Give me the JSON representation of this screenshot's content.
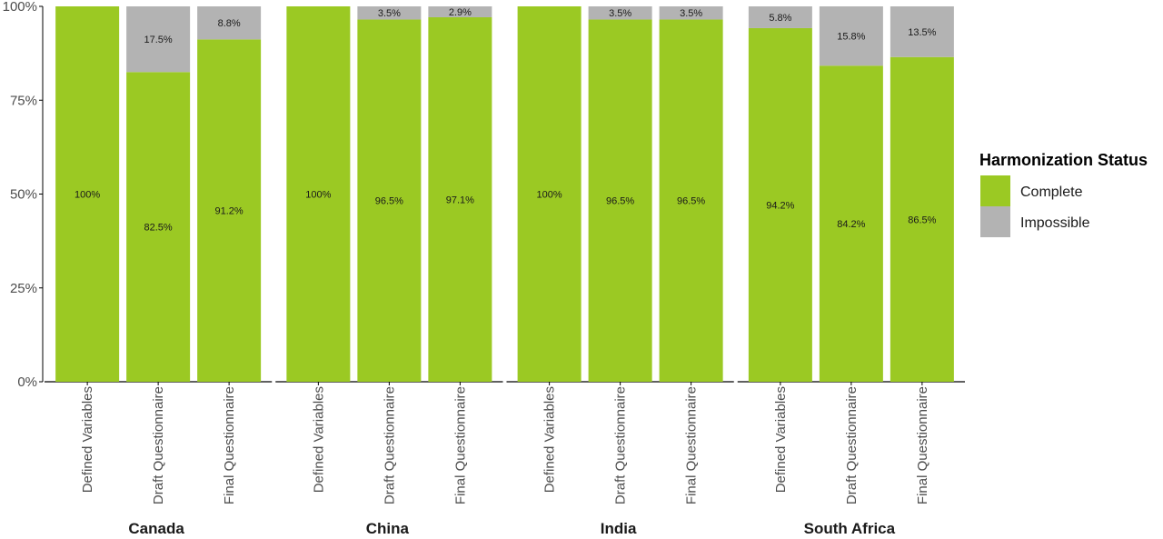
{
  "chart_data": {
    "type": "bar",
    "stacked": true,
    "percent_scale": true,
    "ylim": [
      0,
      100
    ],
    "y_ticks": [
      "0%",
      "25%",
      "50%",
      "75%",
      "100%"
    ],
    "y_tick_values": [
      0,
      25,
      50,
      75,
      100
    ],
    "categories": [
      "Defined Variables",
      "Draft Questionnaire",
      "Final Questionnaire"
    ],
    "facets": [
      {
        "name": "Canada",
        "bars": [
          {
            "category": "Defined Variables",
            "complete": 100,
            "complete_label": "100%",
            "impossible": 0,
            "impossible_label": ""
          },
          {
            "category": "Draft Questionnaire",
            "complete": 82.5,
            "complete_label": "82.5%",
            "impossible": 17.5,
            "impossible_label": "17.5%"
          },
          {
            "category": "Final Questionnaire",
            "complete": 91.2,
            "complete_label": "91.2%",
            "impossible": 8.8,
            "impossible_label": "8.8%"
          }
        ]
      },
      {
        "name": "China",
        "bars": [
          {
            "category": "Defined Variables",
            "complete": 100,
            "complete_label": "100%",
            "impossible": 0,
            "impossible_label": ""
          },
          {
            "category": "Draft Questionnaire",
            "complete": 96.5,
            "complete_label": "96.5%",
            "impossible": 3.5,
            "impossible_label": "3.5%"
          },
          {
            "category": "Final Questionnaire",
            "complete": 97.1,
            "complete_label": "97.1%",
            "impossible": 2.9,
            "impossible_label": "2.9%"
          }
        ]
      },
      {
        "name": "India",
        "bars": [
          {
            "category": "Defined Variables",
            "complete": 100,
            "complete_label": "100%",
            "impossible": 0,
            "impossible_label": ""
          },
          {
            "category": "Draft Questionnaire",
            "complete": 96.5,
            "complete_label": "96.5%",
            "impossible": 3.5,
            "impossible_label": "3.5%"
          },
          {
            "category": "Final Questionnaire",
            "complete": 96.5,
            "complete_label": "96.5%",
            "impossible": 3.5,
            "impossible_label": "3.5%"
          }
        ]
      },
      {
        "name": "South Africa",
        "bars": [
          {
            "category": "Defined Variables",
            "complete": 94.2,
            "complete_label": "94.2%",
            "impossible": 5.8,
            "impossible_label": "5.8%"
          },
          {
            "category": "Draft Questionnaire",
            "complete": 84.2,
            "complete_label": "84.2%",
            "impossible": 15.8,
            "impossible_label": "15.8%"
          },
          {
            "category": "Final Questionnaire",
            "complete": 86.5,
            "complete_label": "86.5%",
            "impossible": 13.5,
            "impossible_label": "13.5%"
          }
        ]
      }
    ],
    "legend": {
      "title": "Harmonization Status",
      "placement": "right",
      "entries": [
        {
          "name": "Complete",
          "color": "#9bc923"
        },
        {
          "name": "Impossible",
          "color": "#b3b3b3"
        }
      ]
    },
    "colors": {
      "complete": "#9bc923",
      "impossible": "#b3b3b3",
      "axis": "#000000"
    },
    "grid": false
  }
}
